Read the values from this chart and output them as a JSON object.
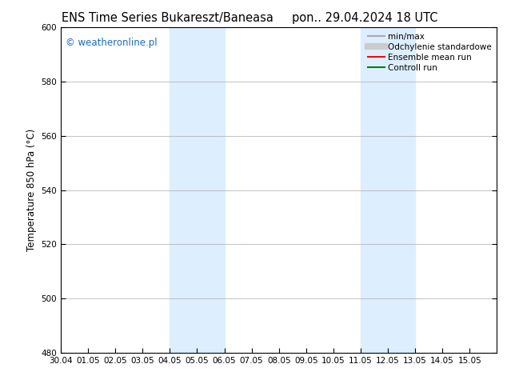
{
  "title_left": "ENS Time Series Bukareszt/Baneasa",
  "title_right": "pon.. 29.04.2024 18 UTC",
  "ylabel": "Temperature 850 hPa (°C)",
  "ylim": [
    480,
    600
  ],
  "yticks": [
    480,
    500,
    520,
    540,
    560,
    580,
    600
  ],
  "xlim": [
    0,
    16
  ],
  "xtick_positions": [
    0,
    1,
    2,
    3,
    4,
    5,
    6,
    7,
    8,
    9,
    10,
    11,
    12,
    13,
    14,
    15
  ],
  "xtick_labels": [
    "30.04",
    "01.05",
    "02.05",
    "03.05",
    "04.05",
    "05.05",
    "06.05",
    "07.05",
    "08.05",
    "09.05",
    "10.05",
    "11.05",
    "12.05",
    "13.05",
    "14.05",
    "15.05"
  ],
  "shaded_bands": [
    {
      "xmin": 4,
      "xmax": 6,
      "color": "#ddeeff"
    },
    {
      "xmin": 11,
      "xmax": 13,
      "color": "#ddeeff"
    }
  ],
  "legend_entries": [
    {
      "label": "min/max",
      "color": "#aaaaaa",
      "lw": 1.5,
      "style": "-"
    },
    {
      "label": "Odchylenie standardowe",
      "color": "#cccccc",
      "lw": 6,
      "style": "-"
    },
    {
      "label": "Ensemble mean run",
      "color": "red",
      "lw": 1.5,
      "style": "-"
    },
    {
      "label": "Controll run",
      "color": "green",
      "lw": 1.5,
      "style": "-"
    }
  ],
  "watermark_text": "© weatheronline.pl",
  "watermark_color": "#1a6bc4",
  "watermark_fontsize": 8.5,
  "bg_color": "#ffffff",
  "plot_bg_color": "#ffffff",
  "grid_color": "#aaaaaa",
  "title_fontsize": 10.5,
  "tick_label_fontsize": 7.5,
  "ylabel_fontsize": 8.5,
  "legend_fontsize": 7.5
}
